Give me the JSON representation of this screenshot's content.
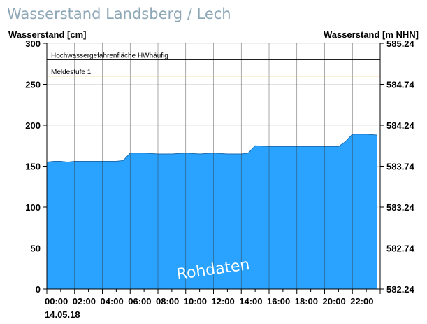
{
  "chart_data": {
    "type": "area",
    "title": "Wasserstand Landsberg / Lech",
    "ylabel_left": "Wasserstand [cm]",
    "ylabel_right": "Wasserstand [m NHN]",
    "y_left_ticks": [
      "0",
      "50",
      "100",
      "150",
      "200",
      "250",
      "300"
    ],
    "y_right_ticks": [
      "582.24",
      "582.74",
      "583.24",
      "583.74",
      "584.24",
      "584.74",
      "585.24"
    ],
    "ylim": [
      0,
      300
    ],
    "xlim_hours": [
      0,
      24
    ],
    "x_ticks": [
      "00:00",
      "02:00",
      "04:00",
      "06:00",
      "08:00",
      "10:00",
      "12:00",
      "14:00",
      "16:00",
      "18:00",
      "20:00",
      "22:00"
    ],
    "date_label": "14.05.18",
    "watermark": "Rohdaten",
    "grid": true,
    "fill_color": "#29a3ff",
    "thresholds": [
      {
        "label": "Hochwassergefahrenfläche HWhäufig",
        "value": 280,
        "color": "#000000"
      },
      {
        "label": "Meldestufe 1",
        "value": 260,
        "color": "#f0c060"
      }
    ],
    "series": [
      {
        "x_hours": [
          0,
          0.5,
          1,
          1.5,
          2,
          3,
          4,
          5,
          5.5,
          6,
          6.5,
          7,
          8,
          9,
          10,
          11,
          12,
          13,
          14,
          14.5,
          15,
          16,
          17,
          18,
          19,
          20,
          21,
          21.5,
          22,
          23,
          23.75
        ],
        "values": [
          155,
          156,
          156,
          155,
          156,
          156,
          156,
          156,
          157,
          166,
          166,
          166,
          165,
          165,
          166,
          165,
          166,
          165,
          165,
          166,
          175,
          174,
          174,
          174,
          174,
          174,
          174,
          180,
          189,
          189,
          188
        ]
      }
    ]
  }
}
